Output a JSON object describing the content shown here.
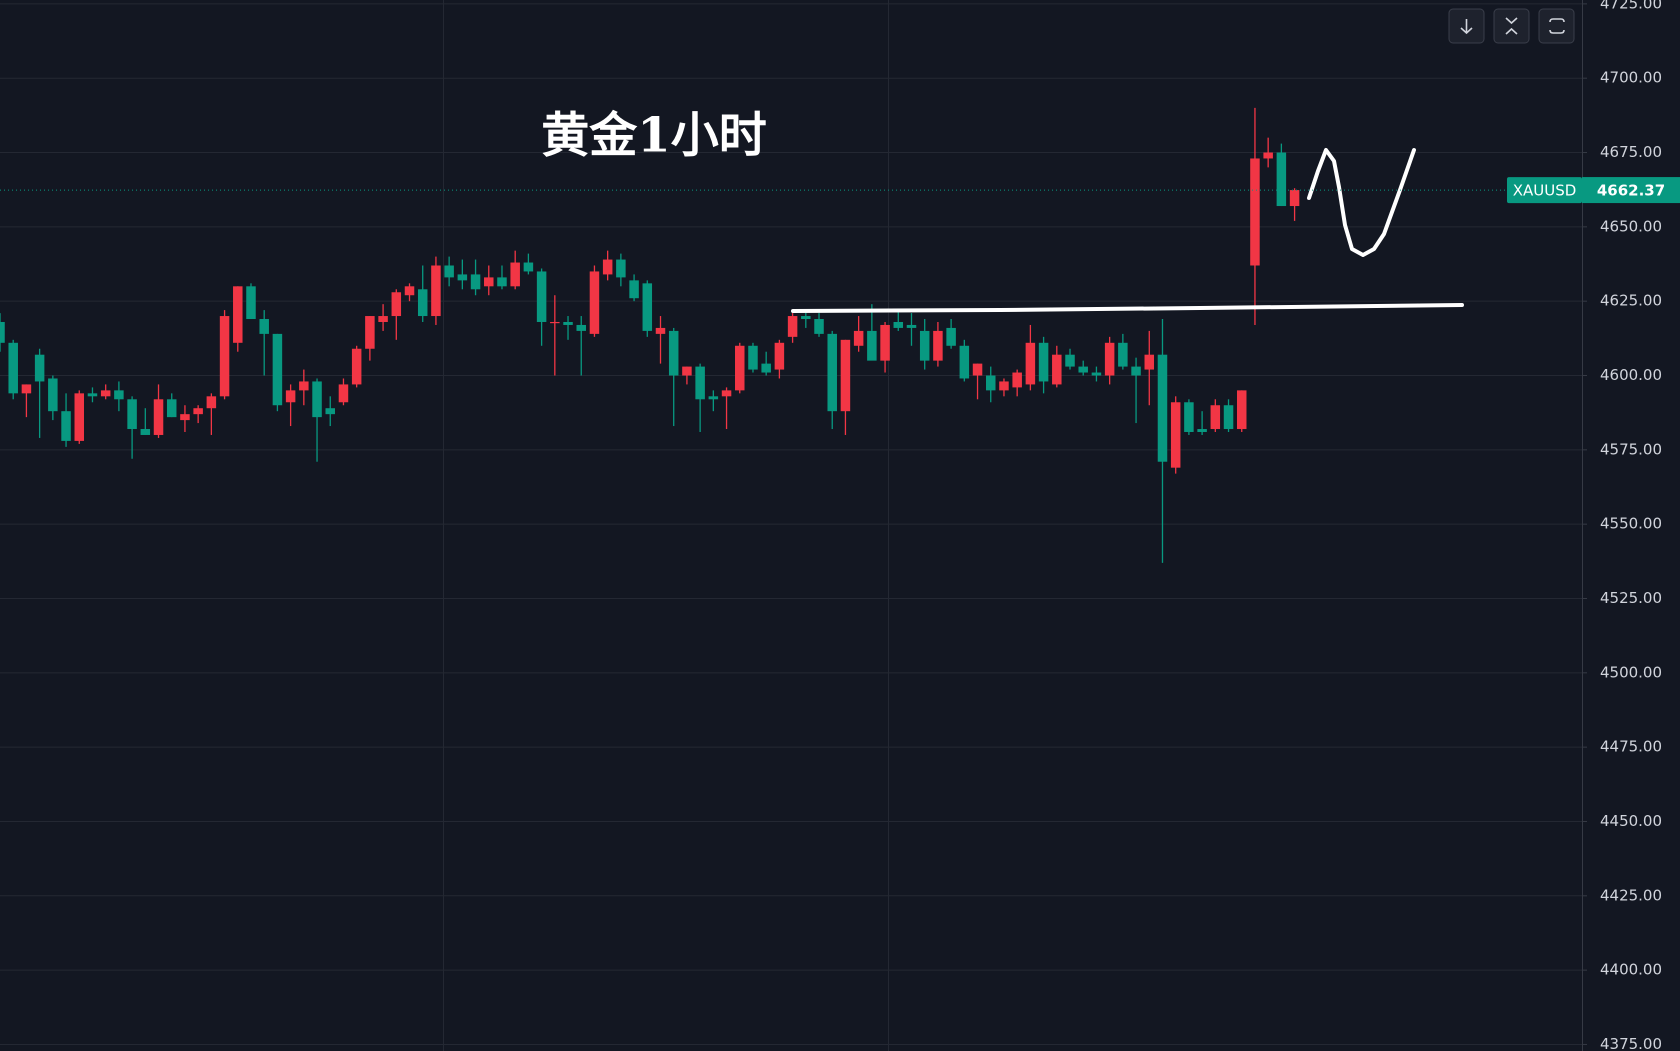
{
  "chart_data": {
    "type": "candlestick",
    "title": "黄金1小时",
    "symbol": "XAUUSD",
    "up_color": "#f23645",
    "down_color": "#089981",
    "grid": true,
    "open": [
      4618,
      4611,
      4594,
      4607,
      4599,
      4588,
      4578,
      4594,
      4593,
      4595,
      4592,
      4582,
      4580,
      4592,
      4585,
      4587,
      4589,
      4593,
      4611,
      4630,
      4619,
      4614,
      4591,
      4595,
      4598,
      4589,
      4591,
      4597,
      4609,
      4618,
      4620,
      4627,
      4629,
      4620,
      4637,
      4634,
      4634,
      4630,
      4633,
      4630,
      4638,
      4635,
      4618,
      4618,
      4617,
      4614,
      4634,
      4639,
      4632,
      4631,
      4614,
      4615,
      4600,
      4603,
      4593,
      4593,
      4595,
      4610,
      4604,
      4602,
      4613,
      4620,
      4619,
      4614,
      4588,
      4610,
      4615,
      4605,
      4618,
      4617,
      4615,
      4605,
      4616,
      4610,
      4600,
      4600,
      4595,
      4596,
      4597,
      4611,
      4597,
      4607,
      4603,
      4601,
      4600,
      4611,
      4603,
      4602,
      4607,
      4569,
      4591,
      4582,
      4582,
      4590,
      4582,
      4637,
      4673,
      4675,
      4657
    ],
    "high": [
      4621,
      4612,
      4597,
      4609,
      4600,
      4594,
      4595,
      4596,
      4597,
      4598,
      4593,
      4589,
      4597,
      4594,
      4590,
      4590,
      4594,
      4622,
      4630,
      4631,
      4622,
      4614,
      4597,
      4602,
      4599,
      4593,
      4599,
      4610,
      4620,
      4624,
      4629,
      4631,
      4637,
      4640,
      4640,
      4639,
      4639,
      4637,
      4637,
      4642,
      4641,
      4636,
      4627,
      4620,
      4620,
      4637,
      4642,
      4641,
      4634,
      4632,
      4620,
      4616,
      4603,
      4604,
      4595,
      4596,
      4611,
      4611,
      4608,
      4612,
      4621,
      4622,
      4621,
      4615,
      4612,
      4620,
      4624,
      4618,
      4622,
      4621,
      4619,
      4618,
      4619,
      4612,
      4604,
      4603,
      4599,
      4602,
      4617,
      4613,
      4610,
      4609,
      4605,
      4603,
      4613,
      4614,
      4606,
      4615,
      4619,
      4593,
      4592,
      4588,
      4592,
      4592,
      4595,
      4690,
      4680,
      4678,
      4663
    ],
    "low": [
      4608,
      4592,
      4586,
      4579,
      4585,
      4576,
      4577,
      4591,
      4592,
      4588,
      4572,
      4580,
      4579,
      4586,
      4581,
      4584,
      4580,
      4592,
      4608,
      4619,
      4600,
      4588,
      4583,
      4590,
      4571,
      4583,
      4590,
      4596,
      4605,
      4615,
      4612,
      4625,
      4618,
      4617,
      4630,
      4629,
      4627,
      4627,
      4629,
      4629,
      4634,
      4610,
      4600,
      4612,
      4600,
      4613,
      4632,
      4630,
      4625,
      4613,
      4604,
      4583,
      4597,
      4581,
      4588,
      4582,
      4594,
      4601,
      4600,
      4599,
      4611,
      4616,
      4613,
      4582,
      4580,
      4608,
      4606,
      4601,
      4615,
      4610,
      4602,
      4603,
      4609,
      4598,
      4592,
      4591,
      4593,
      4593,
      4595,
      4594,
      4596,
      4602,
      4600,
      4598,
      4597,
      4602,
      4584,
      4590,
      4537,
      4567,
      4580,
      4580,
      4581,
      4581,
      4581,
      4617,
      4670,
      4657,
      4652
    ],
    "close": [
      4611,
      4594,
      4597,
      4598,
      4588,
      4578,
      4594,
      4593,
      4595,
      4592,
      4582,
      4580,
      4592,
      4586,
      4587,
      4589,
      4593,
      4620,
      4630,
      4619,
      4614,
      4590,
      4595,
      4598,
      4586,
      4587,
      4597,
      4609,
      4620,
      4620,
      4628,
      4630,
      4620,
      4637,
      4633,
      4632,
      4629,
      4633,
      4630,
      4638,
      4635,
      4618,
      4618,
      4617,
      4615,
      4635,
      4639,
      4633,
      4626,
      4615,
      4616,
      4600,
      4603,
      4592,
      4592,
      4595,
      4610,
      4602,
      4601,
      4611,
      4620,
      4619,
      4614,
      4588,
      4612,
      4615,
      4605,
      4617,
      4616,
      4616,
      4605,
      4615,
      4610,
      4599,
      4604,
      4595,
      4598,
      4601,
      4611,
      4598,
      4607,
      4603,
      4601,
      4600,
      4611,
      4603,
      4600,
      4607,
      4571,
      4591,
      4581,
      4581,
      4590,
      4582,
      4595,
      4673,
      4675,
      4657,
      4662.37
    ],
    "ylim": [
      4372.8,
      4726.3
    ],
    "yticks": [
      {
        "value": 4375,
        "label": "4375.00"
      },
      {
        "value": 4400,
        "label": "4400.00"
      },
      {
        "value": 4425,
        "label": "4425.00"
      },
      {
        "value": 4450,
        "label": "4450.00"
      },
      {
        "value": 4475,
        "label": "4475.00"
      },
      {
        "value": 4500,
        "label": "4500.00"
      },
      {
        "value": 4525,
        "label": "4525.00"
      },
      {
        "value": 4550,
        "label": "4550.00"
      },
      {
        "value": 4575,
        "label": "4575.00"
      },
      {
        "value": 4600,
        "label": "4600.00"
      },
      {
        "value": 4625,
        "label": "4625.00"
      },
      {
        "value": 4650,
        "label": "4650.00"
      },
      {
        "value": 4675,
        "label": "4675.00"
      },
      {
        "value": 4700,
        "label": "4700.00"
      },
      {
        "value": 4725,
        "label": "4725.00"
      }
    ]
  }
}
